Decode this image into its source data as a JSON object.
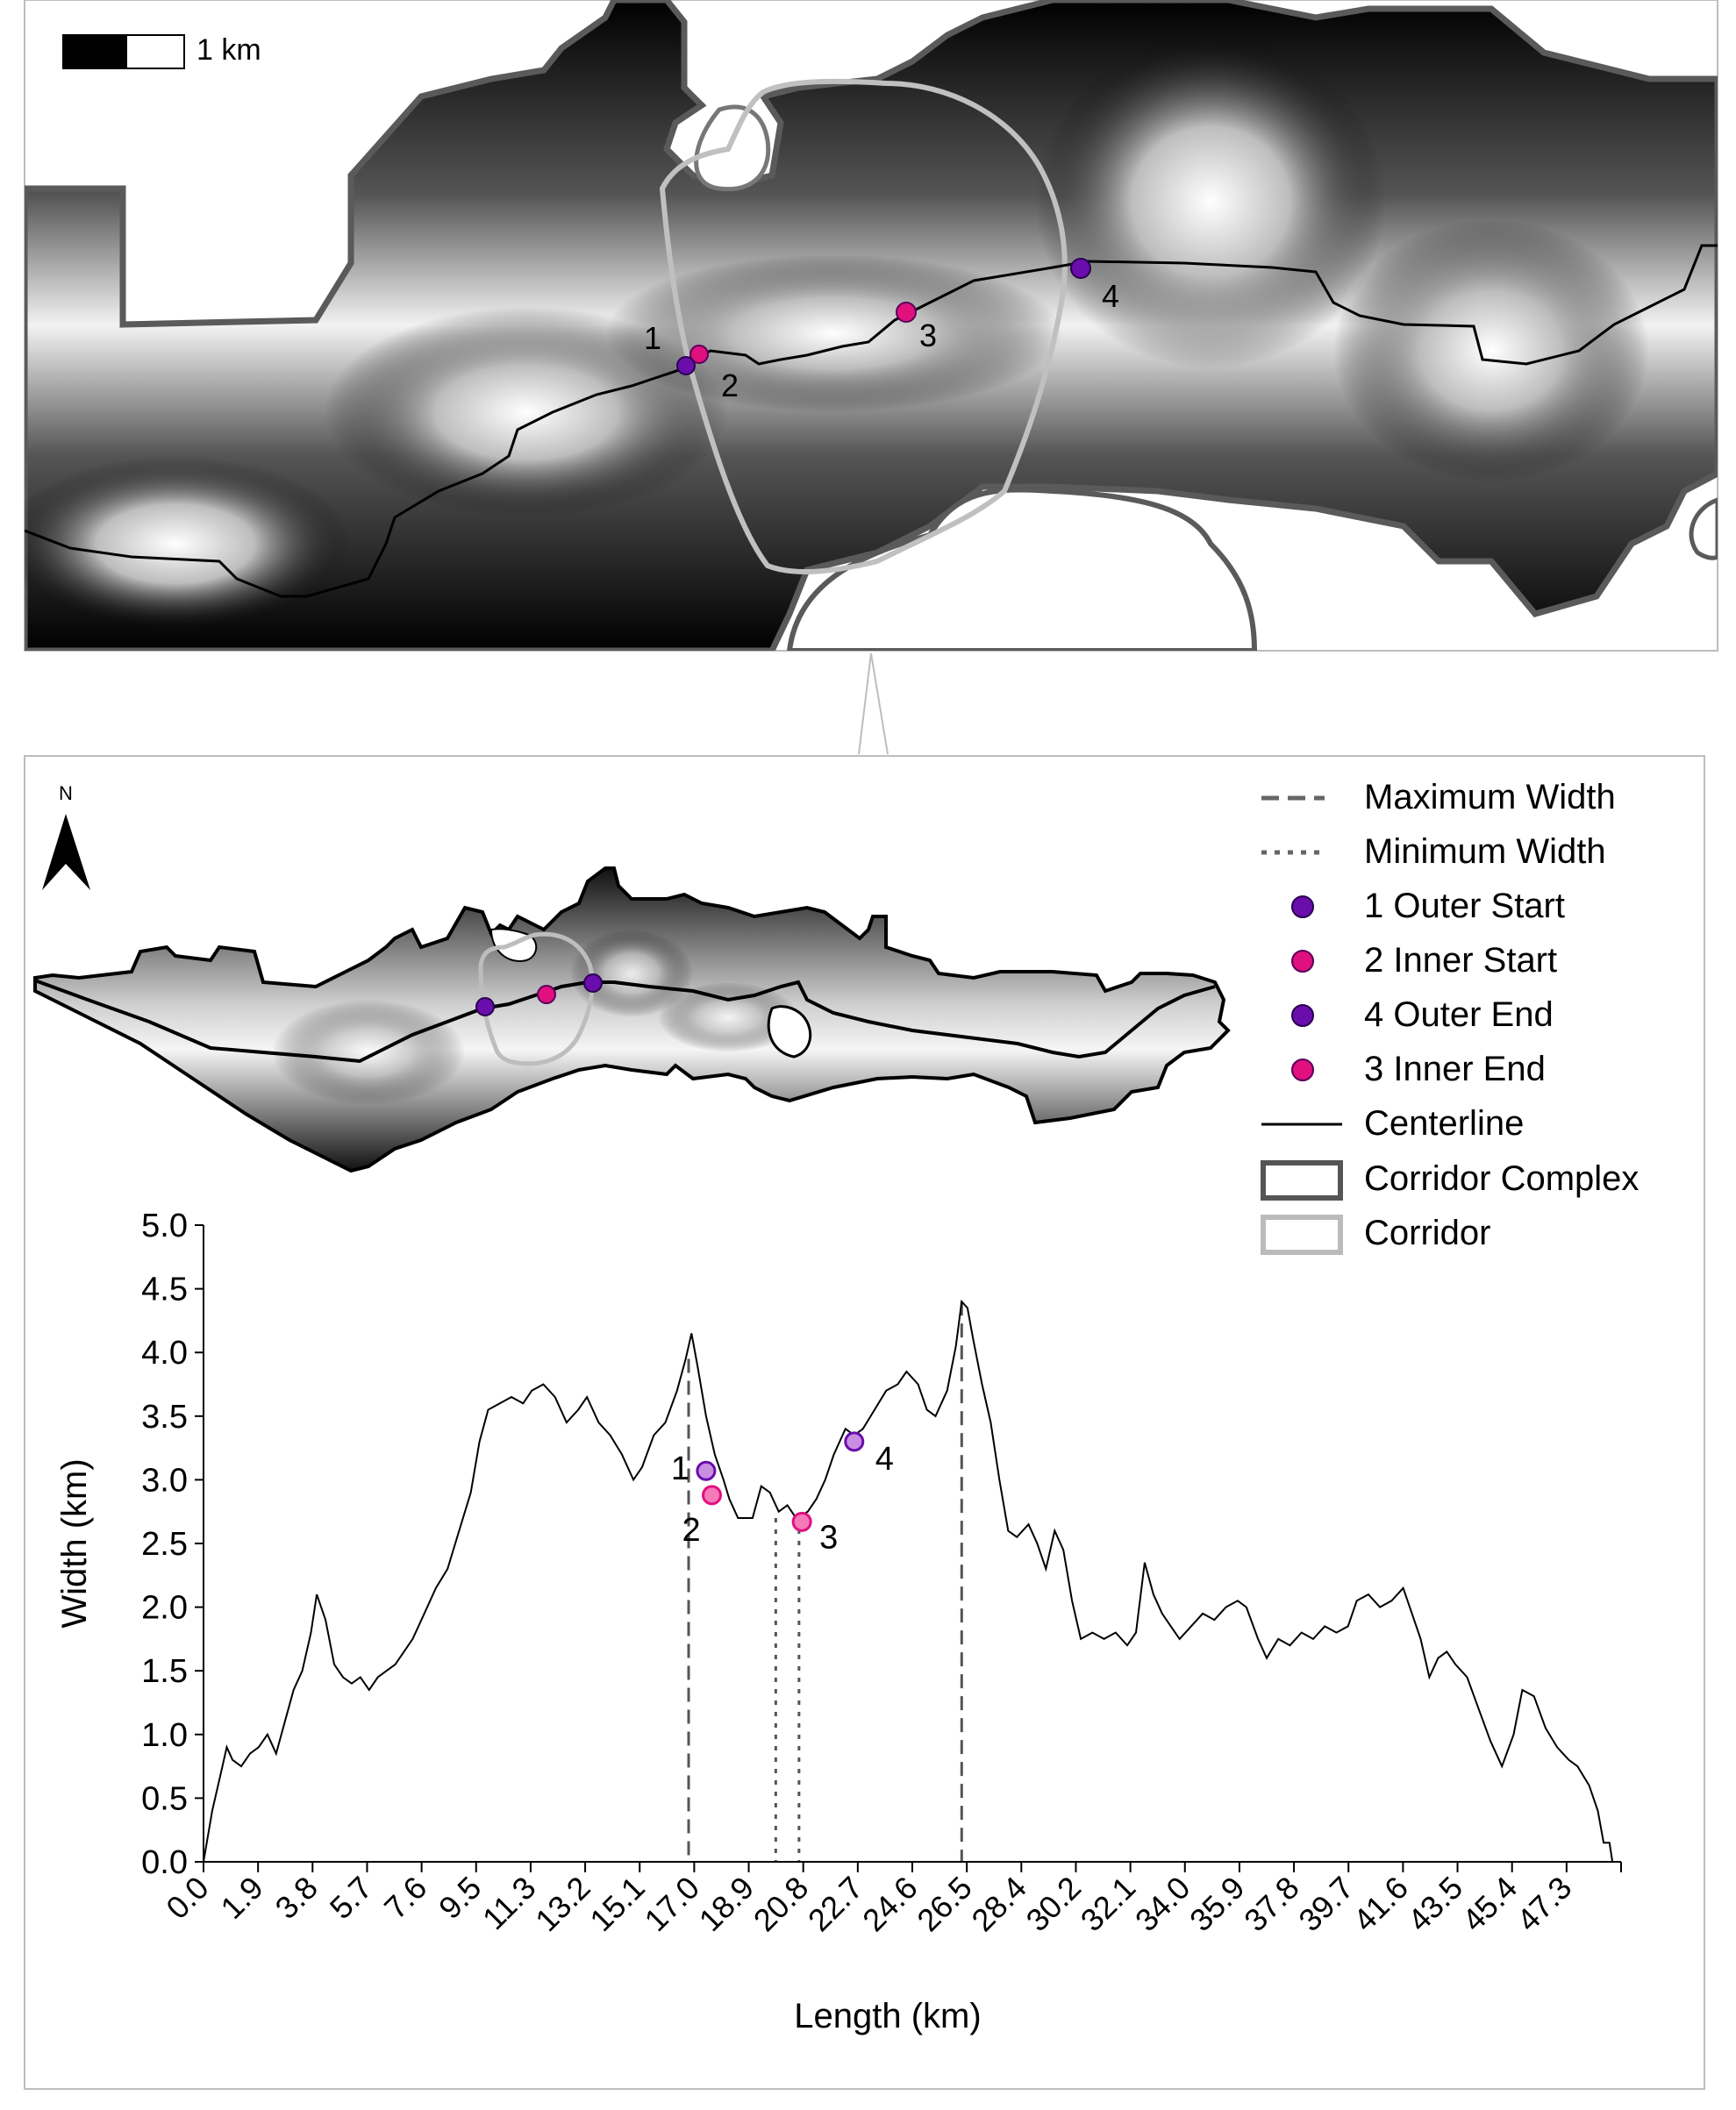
{
  "top_panel": {
    "scale_bar_label": "1 km",
    "point_labels": [
      "1",
      "2",
      "3",
      "4"
    ]
  },
  "bottom_panel": {
    "north_label": "N",
    "legend": {
      "items": [
        {
          "label": "Maximum Width",
          "symbol": "dashed-line"
        },
        {
          "label": "Minimum Width",
          "symbol": "dotted-line"
        },
        {
          "label": "1 Outer Start",
          "symbol": "purple-dot"
        },
        {
          "label": "2 Inner Start",
          "symbol": "magenta-dot"
        },
        {
          "label": "4 Outer End",
          "symbol": "purple-dot"
        },
        {
          "label": "3 Inner End",
          "symbol": "magenta-dot"
        },
        {
          "label": "Centerline",
          "symbol": "solid-line"
        },
        {
          "label": "Corridor Complex",
          "symbol": "dark-box"
        },
        {
          "label": "Corridor",
          "symbol": "light-box"
        }
      ]
    }
  },
  "colors": {
    "outer_point": "#6a0dad",
    "inner_point": "#e0107f",
    "outer_point_light": "#c98ee0",
    "inner_point_light": "#f47ab8",
    "corridor_complex": "#555555",
    "corridor": "#bbbbbb",
    "centerline": "#000000"
  },
  "chart_data": {
    "type": "line",
    "xlabel": "Length (km)",
    "ylabel": "Width (km)",
    "xlim": [
      0,
      48.8
    ],
    "ylim": [
      0,
      5
    ],
    "yticks": [
      "0.0",
      "0.5",
      "1.0",
      "1.5",
      "2.0",
      "2.5",
      "3.0",
      "3.5",
      "4.0",
      "4.5",
      "5.0"
    ],
    "xticks": [
      "0.0",
      "1.9",
      "3.8",
      "5.7",
      "7.6",
      "9.5",
      "11.3",
      "13.2",
      "15.1",
      "17.0",
      "18.9",
      "20.8",
      "22.7",
      "24.6",
      "26.5",
      "28.4",
      "30.2",
      "32.1",
      "34.0",
      "35.9",
      "37.8",
      "39.7",
      "41.6",
      "43.5",
      "45.4",
      "47.3"
    ],
    "series": [
      {
        "values": [
          [
            0.0,
            0.0
          ],
          [
            0.3,
            0.4
          ],
          [
            0.6,
            0.7
          ],
          [
            0.8,
            0.9
          ],
          [
            1.0,
            0.8
          ],
          [
            1.3,
            0.75
          ],
          [
            1.6,
            0.85
          ],
          [
            1.9,
            0.9
          ],
          [
            2.2,
            1.0
          ],
          [
            2.5,
            0.85
          ],
          [
            2.8,
            1.1
          ],
          [
            3.1,
            1.35
          ],
          [
            3.4,
            1.5
          ],
          [
            3.7,
            1.8
          ],
          [
            3.9,
            2.1
          ],
          [
            4.2,
            1.9
          ],
          [
            4.5,
            1.55
          ],
          [
            4.8,
            1.45
          ],
          [
            5.1,
            1.4
          ],
          [
            5.4,
            1.45
          ],
          [
            5.7,
            1.35
          ],
          [
            6.0,
            1.45
          ],
          [
            6.3,
            1.5
          ],
          [
            6.6,
            1.55
          ],
          [
            6.9,
            1.65
          ],
          [
            7.2,
            1.75
          ],
          [
            7.6,
            1.95
          ],
          [
            8.0,
            2.15
          ],
          [
            8.4,
            2.3
          ],
          [
            8.8,
            2.6
          ],
          [
            9.2,
            2.9
          ],
          [
            9.5,
            3.3
          ],
          [
            9.8,
            3.55
          ],
          [
            10.2,
            3.6
          ],
          [
            10.6,
            3.65
          ],
          [
            11.0,
            3.6
          ],
          [
            11.3,
            3.7
          ],
          [
            11.7,
            3.75
          ],
          [
            12.1,
            3.65
          ],
          [
            12.5,
            3.45
          ],
          [
            12.9,
            3.55
          ],
          [
            13.2,
            3.65
          ],
          [
            13.6,
            3.45
          ],
          [
            14.0,
            3.35
          ],
          [
            14.4,
            3.2
          ],
          [
            14.8,
            3.0
          ],
          [
            15.1,
            3.1
          ],
          [
            15.5,
            3.35
          ],
          [
            15.9,
            3.45
          ],
          [
            16.3,
            3.7
          ],
          [
            16.6,
            3.95
          ],
          [
            16.8,
            4.15
          ],
          [
            17.0,
            3.9
          ],
          [
            17.3,
            3.5
          ],
          [
            17.6,
            3.2
          ],
          [
            17.9,
            3.0
          ],
          [
            18.1,
            2.85
          ],
          [
            18.4,
            2.7
          ],
          [
            18.9,
            2.7
          ],
          [
            19.2,
            2.95
          ],
          [
            19.5,
            2.9
          ],
          [
            19.8,
            2.75
          ],
          [
            20.1,
            2.8
          ],
          [
            20.4,
            2.7
          ],
          [
            20.8,
            2.75
          ],
          [
            21.1,
            2.85
          ],
          [
            21.4,
            3.0
          ],
          [
            21.7,
            3.2
          ],
          [
            22.1,
            3.4
          ],
          [
            22.4,
            3.35
          ],
          [
            22.7,
            3.4
          ],
          [
            23.1,
            3.55
          ],
          [
            23.5,
            3.7
          ],
          [
            23.9,
            3.75
          ],
          [
            24.2,
            3.85
          ],
          [
            24.6,
            3.75
          ],
          [
            24.9,
            3.55
          ],
          [
            25.2,
            3.5
          ],
          [
            25.6,
            3.7
          ],
          [
            25.9,
            4.05
          ],
          [
            26.1,
            4.4
          ],
          [
            26.3,
            4.35
          ],
          [
            26.5,
            4.1
          ],
          [
            26.8,
            3.75
          ],
          [
            27.1,
            3.45
          ],
          [
            27.4,
            3.0
          ],
          [
            27.7,
            2.6
          ],
          [
            28.0,
            2.55
          ],
          [
            28.4,
            2.65
          ],
          [
            28.7,
            2.5
          ],
          [
            29.0,
            2.3
          ],
          [
            29.3,
            2.6
          ],
          [
            29.6,
            2.45
          ],
          [
            29.9,
            2.05
          ],
          [
            30.2,
            1.75
          ],
          [
            30.6,
            1.8
          ],
          [
            31.0,
            1.75
          ],
          [
            31.4,
            1.8
          ],
          [
            31.8,
            1.7
          ],
          [
            32.1,
            1.8
          ],
          [
            32.4,
            2.35
          ],
          [
            32.7,
            2.1
          ],
          [
            33.0,
            1.95
          ],
          [
            33.3,
            1.85
          ],
          [
            33.6,
            1.75
          ],
          [
            34.0,
            1.85
          ],
          [
            34.4,
            1.95
          ],
          [
            34.8,
            1.9
          ],
          [
            35.2,
            2.0
          ],
          [
            35.6,
            2.05
          ],
          [
            35.9,
            2.0
          ],
          [
            36.3,
            1.75
          ],
          [
            36.6,
            1.6
          ],
          [
            37.0,
            1.75
          ],
          [
            37.4,
            1.7
          ],
          [
            37.8,
            1.8
          ],
          [
            38.2,
            1.75
          ],
          [
            38.6,
            1.85
          ],
          [
            39.0,
            1.8
          ],
          [
            39.4,
            1.85
          ],
          [
            39.7,
            2.05
          ],
          [
            40.1,
            2.1
          ],
          [
            40.5,
            2.0
          ],
          [
            40.9,
            2.05
          ],
          [
            41.3,
            2.15
          ],
          [
            41.6,
            1.95
          ],
          [
            41.9,
            1.75
          ],
          [
            42.2,
            1.45
          ],
          [
            42.5,
            1.6
          ],
          [
            42.8,
            1.65
          ],
          [
            43.1,
            1.55
          ],
          [
            43.5,
            1.45
          ],
          [
            43.9,
            1.2
          ],
          [
            44.3,
            0.95
          ],
          [
            44.7,
            0.75
          ],
          [
            45.1,
            1.0
          ],
          [
            45.4,
            1.35
          ],
          [
            45.8,
            1.3
          ],
          [
            46.2,
            1.05
          ],
          [
            46.6,
            0.9
          ],
          [
            47.0,
            0.8
          ],
          [
            47.3,
            0.75
          ],
          [
            47.7,
            0.6
          ],
          [
            48.0,
            0.4
          ],
          [
            48.2,
            0.15
          ],
          [
            48.4,
            0.15
          ],
          [
            48.5,
            0.0
          ]
        ]
      }
    ],
    "max_width_lines_x": [
      16.7,
      26.1
    ],
    "min_width_lines_x": [
      19.7,
      20.5
    ],
    "points": [
      {
        "label": "1",
        "x": 17.3,
        "y": 3.07,
        "kind": "outer"
      },
      {
        "label": "2",
        "x": 17.5,
        "y": 2.88,
        "kind": "inner"
      },
      {
        "label": "3",
        "x": 20.6,
        "y": 2.67,
        "kind": "inner"
      },
      {
        "label": "4",
        "x": 22.4,
        "y": 3.3,
        "kind": "outer"
      }
    ]
  }
}
